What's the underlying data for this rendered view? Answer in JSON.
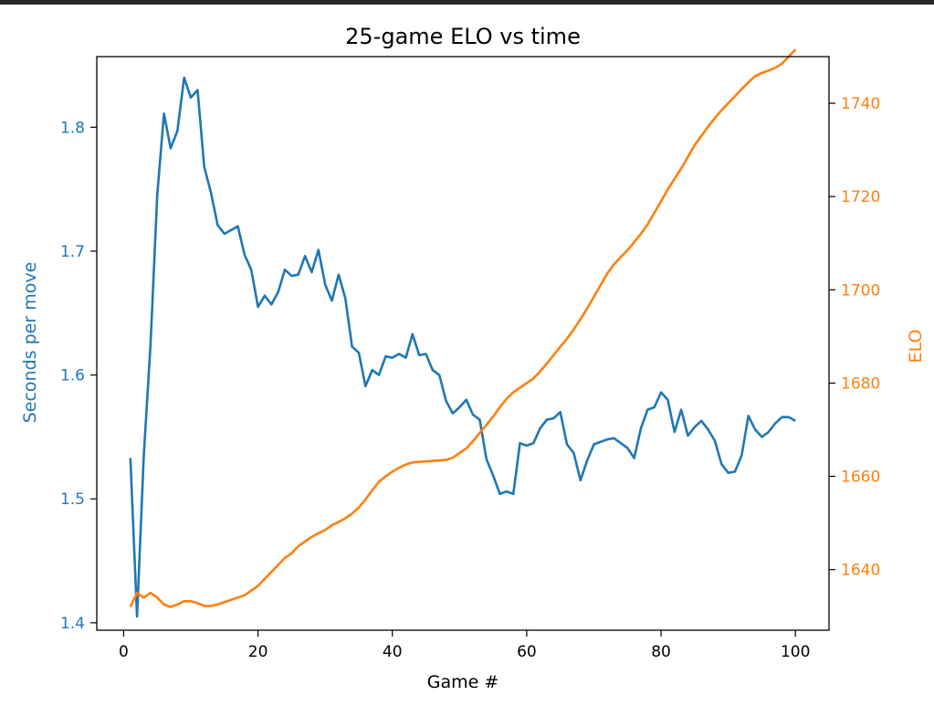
{
  "chart_data": {
    "type": "line",
    "title": "25-game ELO vs time",
    "xlabel": "Game #",
    "ylabel_left": "Seconds per move",
    "ylabel_right": "ELO",
    "xlim": [
      -4,
      105
    ],
    "ylim_left": [
      1.394,
      1.857
    ],
    "ylim_right": [
      1627,
      1750
    ],
    "x_ticks": [
      0,
      20,
      40,
      60,
      80,
      100
    ],
    "y_ticks_left": [
      1.4,
      1.5,
      1.6,
      1.7,
      1.8
    ],
    "y_ticks_right": [
      1640,
      1660,
      1680,
      1700,
      1720,
      1740
    ],
    "grid": false,
    "series": [
      {
        "axis": "left",
        "color": "#1f77b4",
        "x": [
          1,
          2,
          3,
          4,
          5,
          6,
          7,
          8,
          9,
          10,
          11,
          12,
          13,
          14,
          15,
          16,
          17,
          18,
          19,
          20,
          21,
          22,
          23,
          24,
          25,
          26,
          27,
          28,
          29,
          30,
          31,
          32,
          33,
          34,
          35,
          36,
          37,
          38,
          39,
          40,
          41,
          42,
          43,
          44,
          45,
          46,
          47,
          48,
          49,
          50,
          51,
          52,
          53,
          54,
          55,
          56,
          57,
          58,
          59,
          60,
          61,
          62,
          63,
          64,
          65,
          66,
          67,
          68,
          69,
          70,
          71,
          72,
          73,
          74,
          75,
          76,
          77,
          78,
          79,
          80,
          81,
          82,
          83,
          84,
          85,
          86,
          87,
          88,
          89,
          90,
          91,
          92,
          93,
          94,
          95,
          96,
          97,
          98,
          99,
          100
        ],
        "values": [
          1.533,
          1.405,
          1.535,
          1.625,
          1.745,
          1.811,
          1.783,
          1.797,
          1.84,
          1.824,
          1.83,
          1.768,
          1.747,
          1.721,
          1.714,
          1.717,
          1.72,
          1.697,
          1.685,
          1.655,
          1.664,
          1.657,
          1.667,
          1.685,
          1.68,
          1.681,
          1.696,
          1.683,
          1.701,
          1.673,
          1.66,
          1.681,
          1.662,
          1.623,
          1.618,
          1.591,
          1.604,
          1.6,
          1.615,
          1.614,
          1.617,
          1.614,
          1.633,
          1.616,
          1.617,
          1.604,
          1.6,
          1.579,
          1.569,
          1.574,
          1.58,
          1.568,
          1.564,
          1.532,
          1.519,
          1.504,
          1.506,
          1.504,
          1.545,
          1.543,
          1.545,
          1.557,
          1.564,
          1.565,
          1.57,
          1.544,
          1.537,
          1.515,
          1.531,
          1.544,
          1.546,
          1.548,
          1.549,
          1.545,
          1.541,
          1.533,
          1.557,
          1.572,
          1.574,
          1.586,
          1.58,
          1.554,
          1.572,
          1.551,
          1.558,
          1.563,
          1.556,
          1.547,
          1.528,
          1.521,
          1.522,
          1.535,
          1.567,
          1.556,
          1.55,
          1.554,
          1.561,
          1.566,
          1.566,
          1.563
        ]
      },
      {
        "axis": "right",
        "color": "#ff7f0e",
        "x": [
          1,
          2,
          3,
          4,
          5,
          6,
          7,
          8,
          9,
          10,
          11,
          12,
          13,
          14,
          15,
          16,
          17,
          18,
          19,
          20,
          21,
          22,
          23,
          24,
          25,
          26,
          27,
          28,
          29,
          30,
          31,
          32,
          33,
          34,
          35,
          36,
          37,
          38,
          39,
          40,
          41,
          42,
          43,
          44,
          45,
          46,
          47,
          48,
          49,
          50,
          51,
          52,
          53,
          54,
          55,
          56,
          57,
          58,
          59,
          60,
          61,
          62,
          63,
          64,
          65,
          66,
          67,
          68,
          69,
          70,
          71,
          72,
          73,
          74,
          75,
          76,
          77,
          78,
          79,
          80,
          81,
          82,
          83,
          84,
          85,
          86,
          87,
          88,
          89,
          90,
          91,
          92,
          93,
          94,
          95,
          96,
          97,
          98,
          99,
          100
        ],
        "values": [
          1632.0,
          1635.0,
          1634.0,
          1635.0,
          1634.0,
          1632.5,
          1632.0,
          1632.5,
          1633.2,
          1633.2,
          1632.8,
          1632.2,
          1632.2,
          1632.5,
          1633.0,
          1633.5,
          1634.0,
          1634.5,
          1635.5,
          1636.5,
          1638.0,
          1639.5,
          1641.0,
          1642.5,
          1643.5,
          1645.0,
          1646.0,
          1647.0,
          1647.8,
          1648.5,
          1649.5,
          1650.2,
          1651.0,
          1652.0,
          1653.3,
          1655.0,
          1657.0,
          1658.8,
          1660.0,
          1661.0,
          1661.8,
          1662.5,
          1663.0,
          1663.1,
          1663.2,
          1663.3,
          1663.4,
          1663.5,
          1664.0,
          1665.0,
          1666.0,
          1667.5,
          1669.3,
          1671.0,
          1672.8,
          1674.8,
          1676.6,
          1678.0,
          1679.0,
          1680.0,
          1681.0,
          1682.5,
          1684.2,
          1686.0,
          1687.8,
          1689.5,
          1691.5,
          1693.7,
          1696.0,
          1698.5,
          1701.0,
          1703.5,
          1705.5,
          1707.0,
          1708.5,
          1710.2,
          1712.0,
          1714.0,
          1716.5,
          1719.0,
          1721.5,
          1723.8,
          1726.0,
          1728.5,
          1731.0,
          1733.0,
          1735.0,
          1736.8,
          1738.5,
          1740.0,
          1741.5,
          1743.0,
          1744.5,
          1745.8,
          1746.5,
          1747.0,
          1747.6,
          1748.5,
          1750.0,
          1751.5
        ]
      }
    ]
  }
}
